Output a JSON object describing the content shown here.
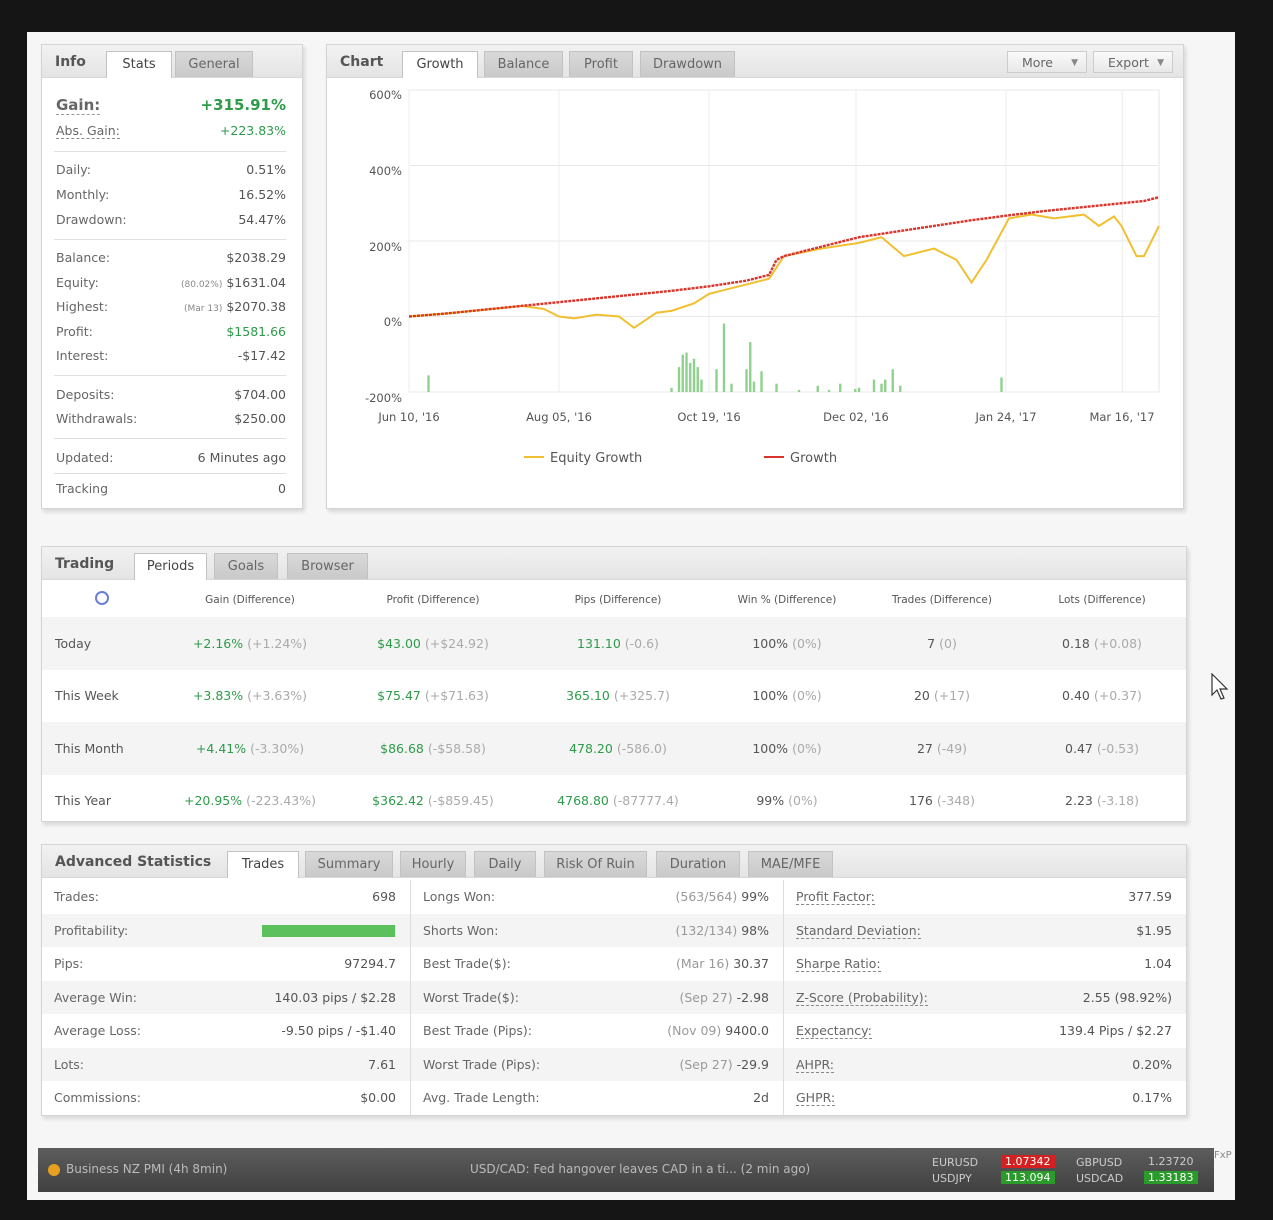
{
  "info": {
    "tabs": [
      "Info",
      "Stats",
      "General"
    ],
    "gain_label": "Gain:",
    "gain_value": "+315.91%",
    "abs_gain_label": "Abs. Gain:",
    "abs_gain_value": "+223.83%",
    "daily_label": "Daily:",
    "daily_value": "0.51%",
    "monthly_label": "Monthly:",
    "monthly_value": "16.52%",
    "drawdown_label": "Drawdown:",
    "drawdown_value": "54.47%",
    "balance_label": "Balance:",
    "balance_value": "$2038.29",
    "equity_label": "Equity:",
    "equity_sub": "(80.02%)",
    "equity_value": "$1631.04",
    "highest_label": "Highest:",
    "highest_sub": "(Mar 13)",
    "highest_value": "$2070.38",
    "profit_label": "Profit:",
    "profit_value": "$1581.66",
    "interest_label": "Interest:",
    "interest_value": "-$17.42",
    "deposits_label": "Deposits:",
    "deposits_value": "$704.00",
    "withdrawals_label": "Withdrawals:",
    "withdrawals_value": "$250.00",
    "updated_label": "Updated:",
    "updated_value": "6 Minutes ago",
    "tracking_label": "Tracking",
    "tracking_value": "0"
  },
  "chart": {
    "title": "Chart",
    "tabs": [
      "Growth",
      "Balance",
      "Profit",
      "Drawdown"
    ],
    "more_label": "More",
    "export_label": "Export",
    "colors": {
      "equity": "#f0c030",
      "growth": "#d9342b",
      "bars": "#8fd18f"
    }
  },
  "chart_data": {
    "type": "line",
    "ylim": [
      -200,
      600
    ],
    "yticks": [
      "600%",
      "400%",
      "200%",
      "0%",
      "-200%"
    ],
    "xticks": [
      "Jun 10, '16",
      "Aug 05, '16",
      "Oct 19, '16",
      "Dec 02, '16",
      "Jan 24, '17",
      "Mar 16, '17"
    ],
    "x_positions": [
      0,
      0.2,
      0.4,
      0.596,
      0.796,
      0.951
    ],
    "series": [
      {
        "name": "Growth",
        "x": [
          0,
          0.05,
          0.1,
          0.15,
          0.2,
          0.25,
          0.3,
          0.35,
          0.4,
          0.45,
          0.48,
          0.49,
          0.5,
          0.55,
          0.6,
          0.65,
          0.7,
          0.75,
          0.8,
          0.85,
          0.9,
          0.95,
          0.98,
          1
        ],
        "values": [
          0,
          8,
          18,
          28,
          38,
          48,
          58,
          68,
          80,
          95,
          110,
          150,
          160,
          185,
          210,
          225,
          240,
          255,
          268,
          280,
          290,
          300,
          306,
          316
        ]
      },
      {
        "name": "Equity Growth",
        "x": [
          0,
          0.05,
          0.1,
          0.15,
          0.18,
          0.2,
          0.22,
          0.25,
          0.28,
          0.3,
          0.33,
          0.35,
          0.38,
          0.4,
          0.42,
          0.45,
          0.48,
          0.49,
          0.5,
          0.55,
          0.6,
          0.63,
          0.66,
          0.7,
          0.73,
          0.75,
          0.77,
          0.8,
          0.83,
          0.86,
          0.9,
          0.92,
          0.94,
          0.95,
          0.97,
          0.98,
          1
        ],
        "values": [
          0,
          8,
          18,
          28,
          20,
          0,
          -5,
          5,
          0,
          -30,
          10,
          15,
          35,
          60,
          70,
          85,
          100,
          130,
          160,
          180,
          195,
          210,
          160,
          180,
          150,
          90,
          150,
          260,
          270,
          260,
          270,
          240,
          265,
          240,
          160,
          160,
          240
        ]
      },
      {
        "name": "Trades",
        "x": [
          0.026,
          0.35,
          0.36,
          0.365,
          0.37,
          0.375,
          0.38,
          0.385,
          0.39,
          0.41,
          0.42,
          0.43,
          0.45,
          0.455,
          0.46,
          0.47,
          0.49,
          0.52,
          0.545,
          0.56,
          0.575,
          0.595,
          0.6,
          0.62,
          0.63,
          0.635,
          0.645,
          0.655,
          0.79
        ],
        "values": [
          80,
          20,
          120,
          180,
          190,
          140,
          160,
          120,
          60,
          110,
          330,
          40,
          110,
          240,
          50,
          100,
          40,
          10,
          30,
          10,
          40,
          15,
          20,
          60,
          40,
          60,
          110,
          30,
          70
        ]
      }
    ]
  },
  "trading": {
    "tabs": [
      "Trading",
      "Periods",
      "Goals",
      "Browser"
    ],
    "headers": [
      "Gain (Difference)",
      "Profit (Difference)",
      "Pips (Difference)",
      "Win % (Difference)",
      "Trades (Difference)",
      "Lots (Difference)"
    ],
    "rows": [
      {
        "period": "Today",
        "gain": "+2.16%",
        "gain_diff": "(+1.24%)",
        "profit": "$43.00",
        "profit_diff": "(+$24.92)",
        "pips": "131.10",
        "pips_diff": "(-0.6)",
        "win": "100%",
        "win_diff": "(0%)",
        "trades": "7",
        "trades_diff": "(0)",
        "lots": "0.18",
        "lots_diff": "(+0.08)"
      },
      {
        "period": "This Week",
        "gain": "+3.83%",
        "gain_diff": "(+3.63%)",
        "profit": "$75.47",
        "profit_diff": "(+$71.63)",
        "pips": "365.10",
        "pips_diff": "(+325.7)",
        "win": "100%",
        "win_diff": "(0%)",
        "trades": "20",
        "trades_diff": "(+17)",
        "lots": "0.40",
        "lots_diff": "(+0.37)"
      },
      {
        "period": "This Month",
        "gain": "+4.41%",
        "gain_diff": "(-3.30%)",
        "profit": "$86.68",
        "profit_diff": "(-$58.58)",
        "pips": "478.20",
        "pips_diff": "(-586.0)",
        "win": "100%",
        "win_diff": "(0%)",
        "trades": "27",
        "trades_diff": "(-49)",
        "lots": "0.47",
        "lots_diff": "(-0.53)"
      },
      {
        "period": "This Year",
        "gain": "+20.95%",
        "gain_diff": "(-223.43%)",
        "profit": "$362.42",
        "profit_diff": "(-$859.45)",
        "pips": "4768.80",
        "pips_diff": "(-87777.4)",
        "win": "99%",
        "win_diff": "(0%)",
        "trades": "176",
        "trades_diff": "(-348)",
        "lots": "2.23",
        "lots_diff": "(-3.18)"
      }
    ]
  },
  "advanced": {
    "tabs": [
      "Advanced Statistics",
      "Trades",
      "Summary",
      "Hourly",
      "Daily",
      "Risk Of Ruin",
      "Duration",
      "MAE/MFE"
    ],
    "col1": [
      {
        "label": "Trades:",
        "value": "698"
      },
      {
        "label": "Profitability:",
        "value": ""
      },
      {
        "label": "Pips:",
        "value": "97294.7"
      },
      {
        "label": "Average Win:",
        "value": "140.03 pips / $2.28"
      },
      {
        "label": "Average Loss:",
        "value": "-9.50 pips / -$1.40"
      },
      {
        "label": "Lots:",
        "value": "7.61"
      },
      {
        "label": "Commissions:",
        "value": "$0.00"
      }
    ],
    "profitability_fraction": 0.99,
    "col2": [
      {
        "label": "Longs Won:",
        "sub": "(563/564)",
        "value": "99%"
      },
      {
        "label": "Shorts Won:",
        "sub": "(132/134)",
        "value": "98%"
      },
      {
        "label": "Best Trade($):",
        "sub": "(Mar 16)",
        "value": "30.37"
      },
      {
        "label": "Worst Trade($):",
        "sub": "(Sep 27)",
        "value": "-2.98"
      },
      {
        "label": "Best Trade (Pips):",
        "sub": "(Nov 09)",
        "value": "9400.0"
      },
      {
        "label": "Worst Trade (Pips):",
        "sub": "(Sep 27)",
        "value": "-29.9"
      },
      {
        "label": "Avg. Trade Length:",
        "sub": "",
        "value": "2d"
      }
    ],
    "col3": [
      {
        "label": "Profit Factor:",
        "value": "377.59"
      },
      {
        "label": "Standard Deviation:",
        "value": "$1.95"
      },
      {
        "label": "Sharpe Ratio:",
        "value": "1.04"
      },
      {
        "label": "Z-Score (Probability):",
        "value": "2.55 (98.92%)"
      },
      {
        "label": "Expectancy:",
        "value": "139.4 Pips / $2.27"
      },
      {
        "label": "AHPR:",
        "value": "0.20%"
      },
      {
        "label": "GHPR:",
        "value": "0.17%"
      }
    ]
  },
  "ticker": {
    "news_left": "Business NZ PMI (4h 8min)",
    "news_center": "USD/CAD: Fed hangover leaves CAD in a ti... (2 min ago)",
    "quotes": [
      {
        "pair": "EURUSD",
        "value": "1.07342"
      },
      {
        "pair": "GBPUSD",
        "value": "1.23720"
      },
      {
        "pair": "USDJPY",
        "value": "113.094"
      },
      {
        "pair": "USDCAD",
        "value": "1.33183"
      }
    ],
    "brand": "FxP"
  }
}
